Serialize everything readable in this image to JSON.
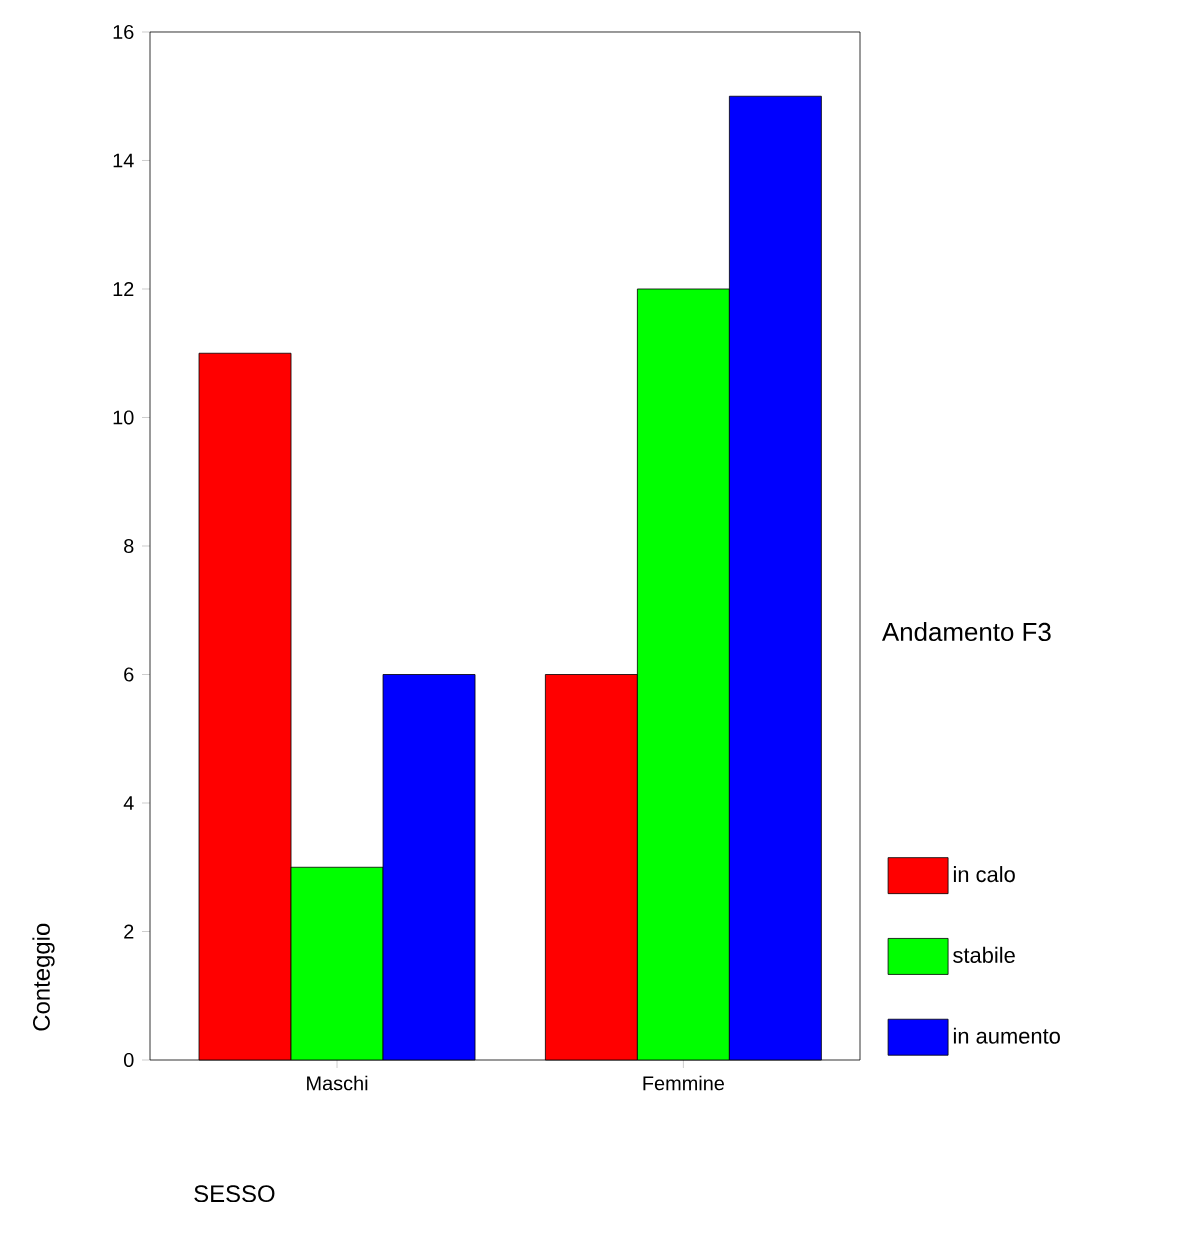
{
  "chart_data": {
    "type": "bar",
    "xlabel": "SESSO",
    "ylabel": "Conteggio",
    "legend_title": "Andamento F3",
    "categories": [
      "Maschi",
      "Femmine"
    ],
    "series": [
      {
        "name": "in calo",
        "color": "#ff0000",
        "values": [
          11,
          6
        ]
      },
      {
        "name": "stabile",
        "color": "#00ff00",
        "values": [
          3,
          12
        ]
      },
      {
        "name": "in aumento",
        "color": "#0000ff",
        "values": [
          6,
          15
        ]
      }
    ],
    "ylim": [
      0,
      16
    ],
    "yticks": [
      0,
      2,
      4,
      6,
      8,
      10,
      12,
      14,
      16
    ],
    "grid": false,
    "legend": "right"
  }
}
